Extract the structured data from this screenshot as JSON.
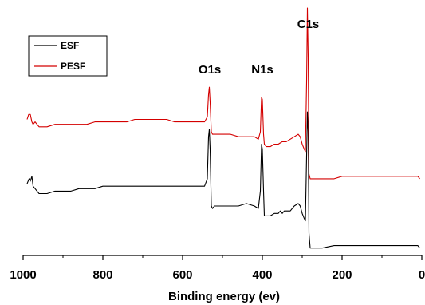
{
  "chart_data": {
    "type": "line",
    "title": "",
    "xlabel": "Binding energy (ev)",
    "ylabel": "",
    "xlim": [
      1000,
      0
    ],
    "x_reversed": true,
    "ylim": [
      0,
      1
    ],
    "y_ticks_shown": false,
    "grid": false,
    "legend_position": "top-left",
    "x_ticks": [
      1000,
      800,
      600,
      400,
      200,
      0
    ],
    "x_tick_labels": [
      "1000",
      "800",
      "600",
      "400",
      "200",
      "0"
    ],
    "annotations": [
      {
        "text": "O1s",
        "x": 532,
        "y": 0.735
      },
      {
        "text": "N1s",
        "x": 400,
        "y": 0.735
      },
      {
        "text": "C1s",
        "x": 285,
        "y": 0.92
      }
    ],
    "series": [
      {
        "name": "ESF",
        "color": "#000000",
        "points": [
          [
            990,
            0.29
          ],
          [
            985,
            0.31
          ],
          [
            982,
            0.3
          ],
          [
            978,
            0.32
          ],
          [
            975,
            0.28
          ],
          [
            970,
            0.27
          ],
          [
            960,
            0.25
          ],
          [
            940,
            0.25
          ],
          [
            920,
            0.26
          ],
          [
            900,
            0.26
          ],
          [
            880,
            0.26
          ],
          [
            860,
            0.27
          ],
          [
            840,
            0.27
          ],
          [
            820,
            0.27
          ],
          [
            800,
            0.28
          ],
          [
            780,
            0.28
          ],
          [
            760,
            0.28
          ],
          [
            740,
            0.28
          ],
          [
            720,
            0.28
          ],
          [
            700,
            0.28
          ],
          [
            680,
            0.28
          ],
          [
            660,
            0.28
          ],
          [
            640,
            0.28
          ],
          [
            620,
            0.28
          ],
          [
            600,
            0.28
          ],
          [
            580,
            0.28
          ],
          [
            560,
            0.28
          ],
          [
            545,
            0.28
          ],
          [
            538,
            0.31
          ],
          [
            535,
            0.48
          ],
          [
            533,
            0.51
          ],
          [
            531,
            0.43
          ],
          [
            528,
            0.2
          ],
          [
            525,
            0.19
          ],
          [
            520,
            0.2
          ],
          [
            500,
            0.2
          ],
          [
            480,
            0.2
          ],
          [
            460,
            0.2
          ],
          [
            440,
            0.21
          ],
          [
            420,
            0.2
          ],
          [
            410,
            0.19
          ],
          [
            405,
            0.26
          ],
          [
            402,
            0.45
          ],
          [
            400,
            0.43
          ],
          [
            397,
            0.26
          ],
          [
            395,
            0.16
          ],
          [
            390,
            0.16
          ],
          [
            380,
            0.16
          ],
          [
            370,
            0.17
          ],
          [
            360,
            0.17
          ],
          [
            355,
            0.18
          ],
          [
            350,
            0.17
          ],
          [
            345,
            0.18
          ],
          [
            340,
            0.18
          ],
          [
            330,
            0.18
          ],
          [
            320,
            0.2
          ],
          [
            310,
            0.21
          ],
          [
            305,
            0.2
          ],
          [
            300,
            0.17
          ],
          [
            295,
            0.15
          ],
          [
            292,
            0.14
          ],
          [
            289,
            0.4
          ],
          [
            287,
            0.58
          ],
          [
            285,
            0.5
          ],
          [
            283,
            0.09
          ],
          [
            280,
            0.03
          ],
          [
            270,
            0.03
          ],
          [
            250,
            0.03
          ],
          [
            220,
            0.04
          ],
          [
            200,
            0.04
          ],
          [
            150,
            0.04
          ],
          [
            100,
            0.04
          ],
          [
            50,
            0.04
          ],
          [
            25,
            0.04
          ],
          [
            10,
            0.04
          ],
          [
            5,
            0.03
          ]
        ]
      },
      {
        "name": "PESF",
        "color": "#d40000",
        "points": [
          [
            990,
            0.55
          ],
          [
            986,
            0.57
          ],
          [
            982,
            0.57
          ],
          [
            978,
            0.54
          ],
          [
            975,
            0.53
          ],
          [
            970,
            0.54
          ],
          [
            960,
            0.52
          ],
          [
            940,
            0.52
          ],
          [
            920,
            0.53
          ],
          [
            900,
            0.53
          ],
          [
            880,
            0.53
          ],
          [
            860,
            0.53
          ],
          [
            840,
            0.53
          ],
          [
            820,
            0.54
          ],
          [
            800,
            0.54
          ],
          [
            780,
            0.54
          ],
          [
            760,
            0.54
          ],
          [
            740,
            0.54
          ],
          [
            720,
            0.55
          ],
          [
            700,
            0.55
          ],
          [
            680,
            0.55
          ],
          [
            660,
            0.55
          ],
          [
            640,
            0.55
          ],
          [
            620,
            0.54
          ],
          [
            600,
            0.54
          ],
          [
            580,
            0.54
          ],
          [
            560,
            0.54
          ],
          [
            545,
            0.54
          ],
          [
            538,
            0.56
          ],
          [
            535,
            0.65
          ],
          [
            533,
            0.68
          ],
          [
            531,
            0.62
          ],
          [
            528,
            0.5
          ],
          [
            525,
            0.49
          ],
          [
            520,
            0.49
          ],
          [
            500,
            0.49
          ],
          [
            480,
            0.49
          ],
          [
            460,
            0.48
          ],
          [
            440,
            0.48
          ],
          [
            420,
            0.48
          ],
          [
            410,
            0.47
          ],
          [
            405,
            0.5
          ],
          [
            402,
            0.64
          ],
          [
            400,
            0.63
          ],
          [
            397,
            0.49
          ],
          [
            395,
            0.45
          ],
          [
            390,
            0.44
          ],
          [
            380,
            0.44
          ],
          [
            370,
            0.45
          ],
          [
            360,
            0.45
          ],
          [
            350,
            0.46
          ],
          [
            340,
            0.46
          ],
          [
            330,
            0.47
          ],
          [
            320,
            0.48
          ],
          [
            310,
            0.49
          ],
          [
            305,
            0.48
          ],
          [
            300,
            0.45
          ],
          [
            295,
            0.43
          ],
          [
            292,
            0.42
          ],
          [
            289,
            0.7
          ],
          [
            287,
            1.0
          ],
          [
            285,
            0.8
          ],
          [
            283,
            0.33
          ],
          [
            280,
            0.31
          ],
          [
            270,
            0.31
          ],
          [
            250,
            0.31
          ],
          [
            220,
            0.31
          ],
          [
            200,
            0.32
          ],
          [
            150,
            0.32
          ],
          [
            100,
            0.32
          ],
          [
            50,
            0.32
          ],
          [
            25,
            0.32
          ],
          [
            10,
            0.32
          ],
          [
            5,
            0.31
          ]
        ]
      }
    ]
  }
}
